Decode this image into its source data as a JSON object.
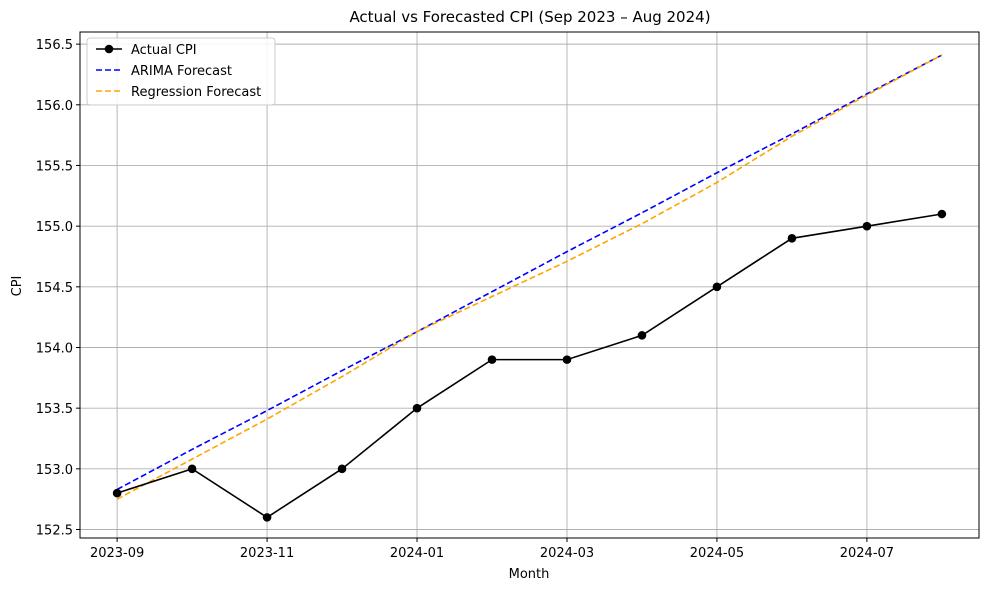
{
  "chart_data": {
    "type": "line",
    "title": "Actual vs Forecasted CPI (Sep 2023 – Aug 2024)",
    "xlabel": "Month",
    "ylabel": "CPI",
    "x": [
      "2023-09",
      "2023-10",
      "2023-11",
      "2023-12",
      "2024-01",
      "2024-02",
      "2024-03",
      "2024-04",
      "2024-05",
      "2024-06",
      "2024-07",
      "2024-08"
    ],
    "x_tick_labels": [
      "2023-09",
      "2023-11",
      "2024-01",
      "2024-03",
      "2024-05",
      "2024-07"
    ],
    "y_ticks": [
      "152.5",
      "153.0",
      "153.5",
      "154.0",
      "154.5",
      "155.0",
      "155.5",
      "156.0",
      "156.5"
    ],
    "ylim": [
      152.43,
      156.6
    ],
    "grid": true,
    "legend_position": "top-left",
    "series": [
      {
        "name": "Actual CPI",
        "color": "#000000",
        "style": "solid-with-markers",
        "values": [
          152.8,
          153.0,
          152.6,
          153.0,
          153.5,
          153.9,
          153.9,
          154.1,
          154.5,
          154.9,
          155.0,
          155.1
        ]
      },
      {
        "name": "ARIMA Forecast",
        "color": "#0000ff",
        "style": "dashed",
        "values": [
          152.83,
          153.16,
          153.48,
          153.81,
          154.13,
          154.46,
          154.79,
          155.11,
          155.44,
          155.76,
          156.09,
          156.41
        ]
      },
      {
        "name": "Regression Forecast",
        "color": "#ffa500",
        "style": "dashed",
        "values": [
          152.75,
          153.08,
          153.41,
          153.76,
          154.13,
          154.42,
          154.71,
          155.02,
          155.36,
          155.74,
          156.08,
          156.41
        ]
      }
    ]
  }
}
